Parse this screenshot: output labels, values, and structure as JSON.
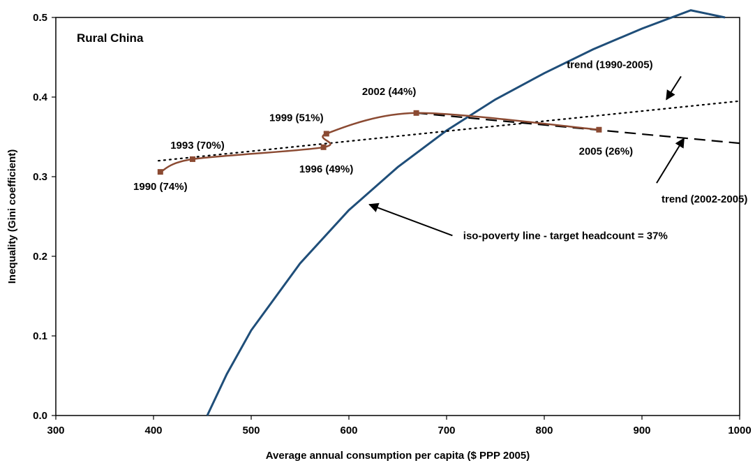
{
  "chart_data": {
    "type": "line",
    "title": "",
    "panel_label": "Rural China",
    "xlabel": "Average annual consumption per capita ($ PPP 2005)",
    "ylabel": "Inequality (Gini coefficient)",
    "xlim": [
      300,
      1000
    ],
    "ylim": [
      0.0,
      0.5
    ],
    "x_ticks": [
      300,
      400,
      500,
      600,
      700,
      800,
      900,
      1000
    ],
    "y_ticks": [
      0.0,
      0.1,
      0.2,
      0.3,
      0.4,
      0.5
    ],
    "x_tick_labels": [
      "300",
      "400",
      "500",
      "600",
      "700",
      "800",
      "900",
      "1000"
    ],
    "y_tick_labels": [
      "0.0",
      "0.1",
      "0.2",
      "0.3",
      "0.4",
      "0.5"
    ],
    "grid": false,
    "legend": "none",
    "series": [
      {
        "color": "#8b4a32",
        "style": "solid-smooth-with-square-markers",
        "points": [
          {
            "x": 407,
            "y": 0.306,
            "label": "1990 (74%)"
          },
          {
            "x": 440,
            "y": 0.322,
            "label": "1993 (70%)"
          },
          {
            "x": 574,
            "y": 0.337,
            "label": "1996 (49%)"
          },
          {
            "x": 577,
            "y": 0.354,
            "label": "1999 (51%)"
          },
          {
            "x": 669,
            "y": 0.38,
            "label": "2002 (44%)"
          },
          {
            "x": 856,
            "y": 0.359,
            "label": "2005 (26%)"
          }
        ]
      },
      {
        "color": "#000000",
        "style": "dotted",
        "x": [
          405,
          1000
        ],
        "y": [
          0.32,
          0.395
        ]
      },
      {
        "color": "#000000",
        "style": "dashed",
        "x": [
          669,
          1000
        ],
        "y": [
          0.38,
          0.342
        ]
      },
      {
        "color": "#1f4e79",
        "style": "solid-curve",
        "x": [
          455,
          475,
          500,
          550,
          600,
          650,
          700,
          750,
          800,
          850,
          900,
          950,
          985
        ],
        "y": [
          0.0,
          0.052,
          0.107,
          0.191,
          0.258,
          0.312,
          0.358,
          0.397,
          0.43,
          0.46,
          0.486,
          0.509,
          0.5
        ]
      }
    ],
    "annotations": [
      {
        "text": "trend (1990-2005)",
        "label_pos": [
          823,
          0.441
        ],
        "arrow_from": [
          940,
          0.426
        ],
        "arrow_to": [
          925,
          0.397
        ]
      },
      {
        "text": "trend (2002-2005)",
        "label_pos": [
          920,
          0.272
        ],
        "arrow_from": [
          915,
          0.292
        ],
        "arrow_to": [
          943,
          0.348
        ]
      },
      {
        "text": "iso-poverty line - target headcount = 37%",
        "label_pos": [
          717,
          0.226
        ],
        "arrow_from": [
          706,
          0.226
        ],
        "arrow_to": [
          621,
          0.265
        ]
      }
    ]
  }
}
